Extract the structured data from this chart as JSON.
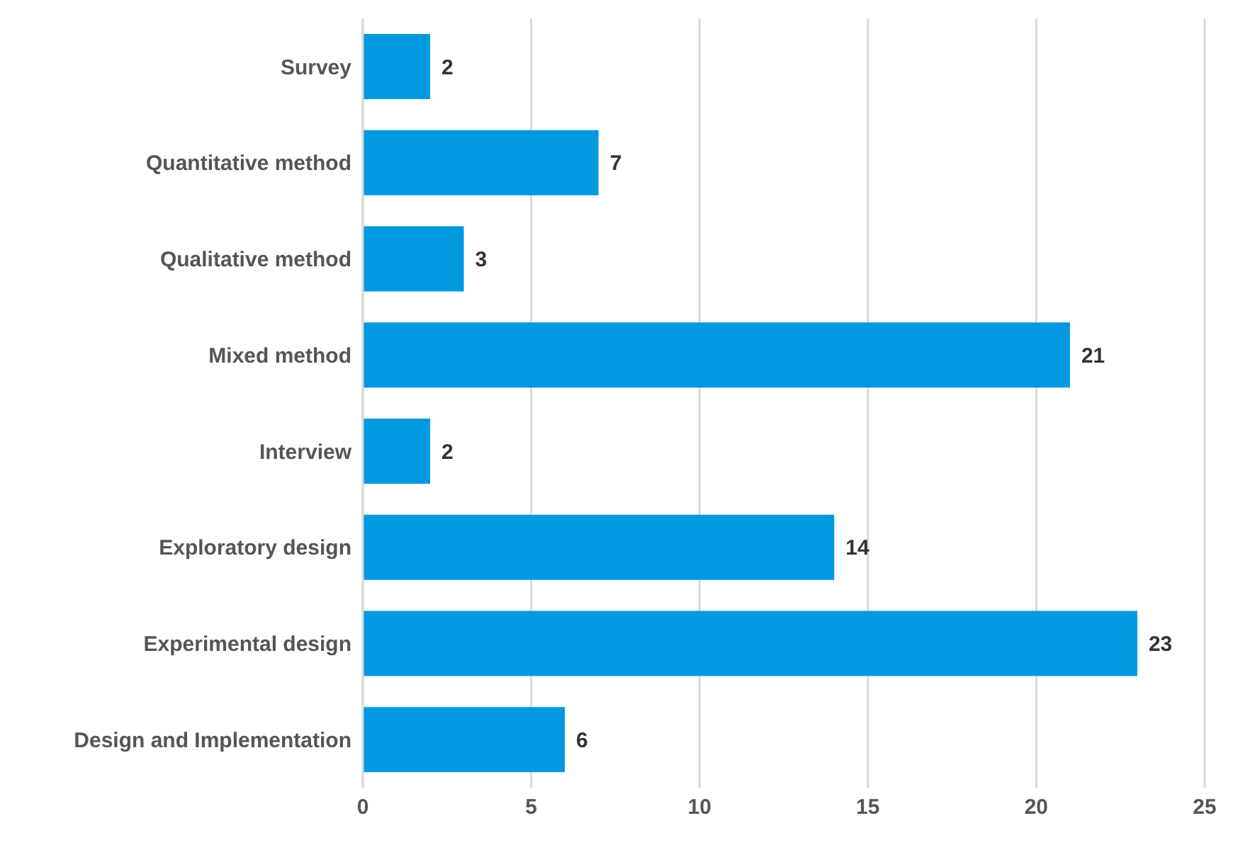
{
  "chart_data": {
    "type": "bar",
    "orientation": "horizontal",
    "categories": [
      "Survey",
      "Quantitative method",
      "Qualitative method",
      "Mixed method",
      "Interview",
      "Exploratory design",
      "Experimental design",
      "Design and Implementation"
    ],
    "values": [
      2,
      7,
      3,
      21,
      2,
      14,
      23,
      6
    ],
    "color": "#0099e0",
    "xlim": [
      0,
      25
    ],
    "xticks": [
      0,
      5,
      10,
      15,
      20,
      25
    ],
    "grid": "x",
    "data_labels": true
  }
}
